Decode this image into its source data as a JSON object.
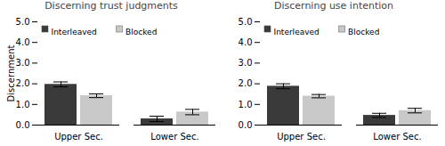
{
  "chart_data": [
    {
      "type": "bar",
      "title": "Discerning trust judgments",
      "ylabel": "Discernment",
      "categories": [
        "Upper Sec.",
        "Lower Sec."
      ],
      "series": [
        {
          "name": "Interleaved",
          "color": "#3a3a3a",
          "values": [
            1.97,
            0.3
          ],
          "errors": [
            0.12,
            0.13
          ]
        },
        {
          "name": "Blocked",
          "color": "#c8c8c8",
          "values": [
            1.42,
            0.63
          ],
          "errors": [
            0.09,
            0.13
          ]
        }
      ],
      "ylim": [
        0,
        5
      ],
      "yticks": [
        0,
        1,
        2,
        3,
        4,
        5
      ],
      "legend": "upper left"
    },
    {
      "type": "bar",
      "title": "Discerning use intention",
      "categories": [
        "Upper Sec.",
        "Lower Sec."
      ],
      "series": [
        {
          "name": "Interleaved",
          "color": "#3a3a3a",
          "values": [
            1.88,
            0.47
          ],
          "errors": [
            0.12,
            0.1
          ]
        },
        {
          "name": "Blocked",
          "color": "#c8c8c8",
          "values": [
            1.4,
            0.7
          ],
          "errors": [
            0.08,
            0.11
          ]
        }
      ],
      "ylim": [
        0,
        5
      ],
      "yticks": [
        0,
        1,
        2,
        3,
        4,
        5
      ],
      "legend": "upper left"
    }
  ]
}
